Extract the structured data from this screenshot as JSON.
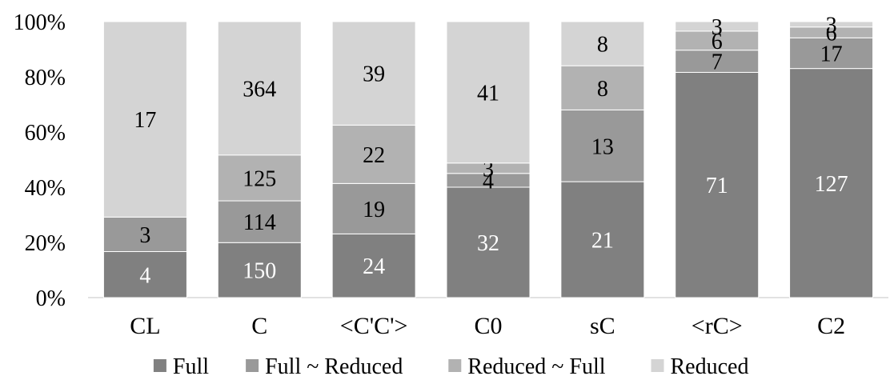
{
  "chart_data": {
    "type": "bar",
    "stacked": true,
    "normalized": true,
    "title": "",
    "xlabel": "",
    "ylabel": "",
    "ylim": [
      0,
      100
    ],
    "y_ticks": [
      "0%",
      "20%",
      "40%",
      "60%",
      "80%",
      "100%"
    ],
    "grid": false,
    "legend_position": "bottom",
    "categories": [
      "CL",
      "C",
      "<C'C'>",
      "C0",
      "sC",
      "<rC>",
      "C2"
    ],
    "series": [
      {
        "name": "Full",
        "color": "#808080",
        "label_color": "#ffffff",
        "values": [
          4,
          150,
          24,
          32,
          21,
          71,
          127
        ]
      },
      {
        "name": "Full ~ Reduced",
        "color": "#999999",
        "label_color": "#000000",
        "values": [
          3,
          114,
          19,
          4,
          13,
          7,
          17
        ]
      },
      {
        "name": "Reduced ~ Full",
        "color": "#b2b2b2",
        "label_color": "#000000",
        "values": [
          0,
          125,
          22,
          3,
          8,
          6,
          6
        ]
      },
      {
        "name": "Reduced",
        "color": "#d4d4d4",
        "label_color": "#000000",
        "values": [
          17,
          364,
          39,
          41,
          8,
          3,
          3
        ]
      }
    ]
  }
}
